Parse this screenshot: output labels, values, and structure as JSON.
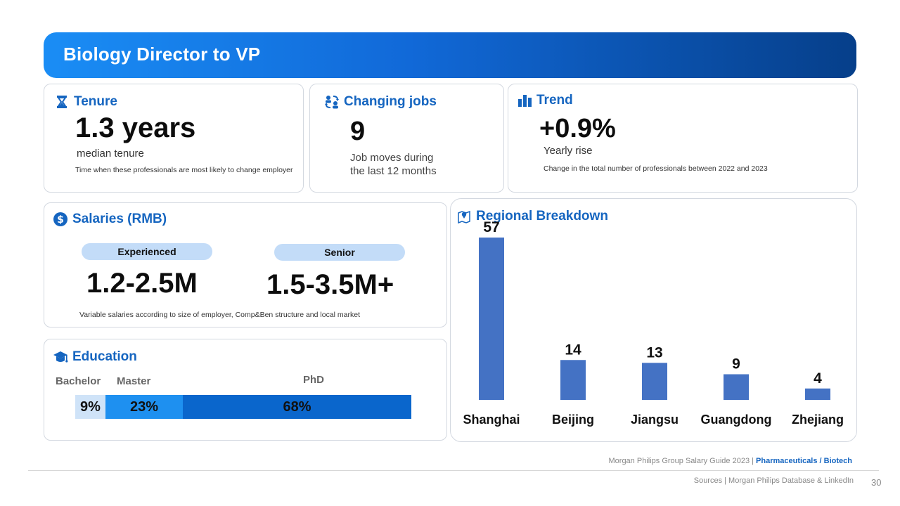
{
  "banner": {
    "title": "Biology Director to VP"
  },
  "tenure": {
    "title": "Tenure",
    "icon": "hourglass-icon",
    "value": "1.3 years",
    "caption": "median tenure",
    "note": "Time when these professionals are most likely to  change employer"
  },
  "jobs": {
    "title": "Changing jobs",
    "icon": "people-exchange-icon",
    "value": "9",
    "caption_line1": "Job moves during",
    "caption_line2": "the last 12 months"
  },
  "trend": {
    "title": "Trend",
    "icon": "bar-chart-icon",
    "value": "+0.9%",
    "caption": "Yearly rise",
    "note": "Change in the total number of professionals between 2022 and 2023"
  },
  "salaries": {
    "title": "Salaries (RMB)",
    "icon": "dollar-circle-icon",
    "experienced_label": "Experienced",
    "experienced_value": "1.2-2.5M",
    "senior_label": "Senior",
    "senior_value": "1.5-3.5M+",
    "note": "Variable salaries according to size of employer, Comp&Ben structure and local market"
  },
  "education": {
    "title": "Education",
    "icon": "graduation-cap-icon",
    "levels": [
      {
        "label": "Bachelor",
        "value": "9%",
        "share": 0.09,
        "color": "#cfe3f8"
      },
      {
        "label": "Master",
        "value": "23%",
        "share": 0.23,
        "color": "#1e90f0"
      },
      {
        "label": "PhD",
        "value": "68%",
        "share": 0.68,
        "color": "#0a66cc"
      }
    ]
  },
  "regional": {
    "title": "Regional Breakdown",
    "icon": "map-pin-icon"
  },
  "chart_data": {
    "type": "bar",
    "title": "Regional Breakdown",
    "categories": [
      "Shanghai",
      "Beijing",
      "Jiangsu",
      "Guangdong",
      "Zhejiang"
    ],
    "values": [
      57,
      14,
      13,
      9,
      4
    ],
    "ylim": [
      0,
      57
    ],
    "grid": false,
    "bar_color": "#4472c4"
  },
  "footer": {
    "guide": "Morgan Philips Group Salary Guide 2023 |",
    "section": "Pharmaceuticals / Biotech",
    "sources": "Sources | Morgan Philips Database & LinkedIn",
    "page": "30"
  }
}
